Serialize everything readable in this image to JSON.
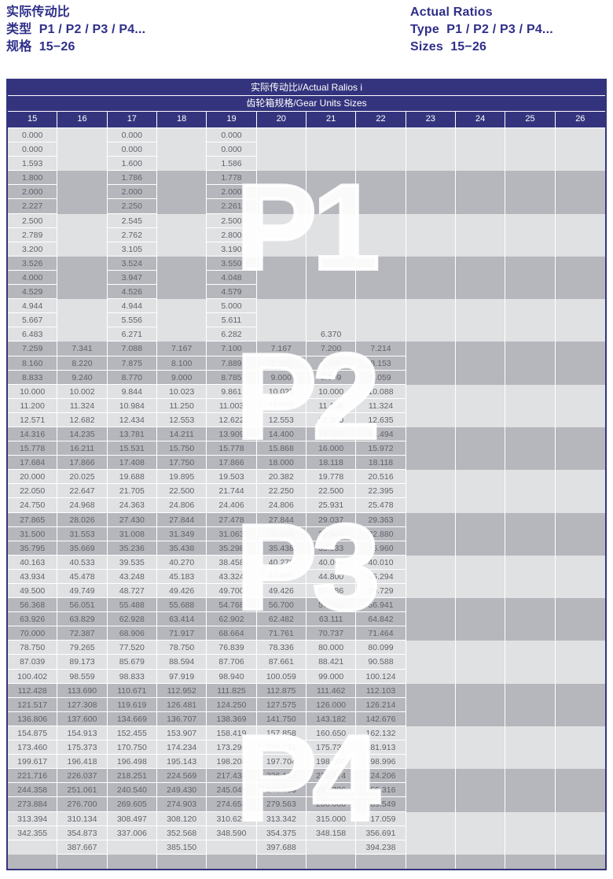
{
  "page_header": {
    "zh": {
      "title": "实际传动比",
      "type_line": "类型  P1 / P2 / P3 / P4...",
      "sizes_line": "规格  15−26"
    },
    "en": {
      "title": "Actual Ratios",
      "type_line": "Type  P1 / P2 / P3 / P4...",
      "sizes_line": "Sizes  15−26"
    }
  },
  "table": {
    "title": "实际传动比i/Actual Ralios i",
    "subtitle": "齿轮箱规格/Gear Units Sizes",
    "columns": [
      "15",
      "16",
      "17",
      "18",
      "19",
      "20",
      "21",
      "22",
      "23",
      "24",
      "25",
      "26"
    ],
    "rows": [
      [
        "0.000",
        "",
        "0.000",
        "",
        "0.000",
        "",
        "",
        "",
        "",
        "",
        "",
        ""
      ],
      [
        "0.000",
        "",
        "0.000",
        "",
        "0.000",
        "",
        "",
        "",
        "",
        "",
        "",
        ""
      ],
      [
        "1.593",
        "",
        "1.600",
        "",
        "1.586",
        "",
        "",
        "",
        "",
        "",
        "",
        ""
      ],
      [
        "1.800",
        "",
        "1.786",
        "",
        "1.778",
        "",
        "",
        "",
        "",
        "",
        "",
        ""
      ],
      [
        "2.000",
        "",
        "2.000",
        "",
        "2.000",
        "",
        "",
        "",
        "",
        "",
        "",
        ""
      ],
      [
        "2.227",
        "",
        "2.250",
        "",
        "2.261",
        "",
        "",
        "",
        "",
        "",
        "",
        ""
      ],
      [
        "2.500",
        "",
        "2.545",
        "",
        "2.500",
        "",
        "",
        "",
        "",
        "",
        "",
        ""
      ],
      [
        "2.789",
        "",
        "2.762",
        "",
        "2.800",
        "",
        "",
        "",
        "",
        "",
        "",
        ""
      ],
      [
        "3.200",
        "",
        "3.105",
        "",
        "3.190",
        "",
        "",
        "",
        "",
        "",
        "",
        ""
      ],
      [
        "3.526",
        "",
        "3.524",
        "",
        "3.550",
        "",
        "",
        "",
        "",
        "",
        "",
        ""
      ],
      [
        "4.000",
        "",
        "3.947",
        "",
        "4.048",
        "",
        "",
        "",
        "",
        "",
        "",
        ""
      ],
      [
        "4.529",
        "",
        "4.526",
        "",
        "4.579",
        "",
        "",
        "",
        "",
        "",
        "",
        ""
      ],
      [
        "4.944",
        "",
        "4.944",
        "",
        "5.000",
        "",
        "",
        "",
        "",
        "",
        "",
        ""
      ],
      [
        "5.667",
        "",
        "5.556",
        "",
        "5.611",
        "",
        "",
        "",
        "",
        "",
        "",
        ""
      ],
      [
        "6.483",
        "",
        "6.271",
        "",
        "6.282",
        "",
        "6.370",
        "",
        "",
        "",
        "",
        ""
      ],
      [
        "7.259",
        "7.341",
        "7.088",
        "7.167",
        "7.100",
        "7.167",
        "7.200",
        "7.214",
        "",
        "",
        "",
        ""
      ],
      [
        "8.160",
        "8.220",
        "7.875",
        "8.100",
        "7.889",
        "8.100",
        "8.000",
        "8.153",
        "",
        "",
        "",
        ""
      ],
      [
        "8.833",
        "9.240",
        "8.770",
        "9.000",
        "8.785",
        "9.000",
        "8.909",
        "9.059",
        "",
        "",
        "",
        ""
      ],
      [
        "10.000",
        "10.002",
        "9.844",
        "10.023",
        "9.861",
        "10.023",
        "10.000",
        "10.088",
        "",
        "",
        "",
        ""
      ],
      [
        "11.200",
        "11.324",
        "10.984",
        "11.250",
        "11.003",
        "11.250",
        "11.158",
        "11.324",
        "",
        "",
        "",
        ""
      ],
      [
        "12.571",
        "12.682",
        "12.434",
        "12.553",
        "12.622",
        "12.553",
        "12.800",
        "12.635",
        "",
        "",
        "",
        ""
      ],
      [
        "14.316",
        "14.235",
        "13.781",
        "14.211",
        "13.909",
        "14.400",
        "14.105",
        "14.494",
        "",
        "",
        "",
        ""
      ],
      [
        "15.778",
        "16.211",
        "15.531",
        "15.750",
        "15.778",
        "15.868",
        "16.000",
        "15.972",
        "",
        "",
        "",
        ""
      ],
      [
        "17.684",
        "17.866",
        "17.408",
        "17.750",
        "17.866",
        "18.000",
        "18.118",
        "18.118",
        "",
        "",
        "",
        ""
      ],
      [
        "20.000",
        "20.025",
        "19.688",
        "19.895",
        "19.503",
        "20.382",
        "19.778",
        "20.516",
        "",
        "",
        "",
        ""
      ],
      [
        "22.050",
        "22.647",
        "21.705",
        "22.500",
        "21.744",
        "22.250",
        "22.500",
        "22.395",
        "",
        "",
        "",
        ""
      ],
      [
        "24.750",
        "24.968",
        "24.363",
        "24.806",
        "24.406",
        "24.806",
        "25.931",
        "25.478",
        "",
        "",
        "",
        ""
      ],
      [
        "27.865",
        "28.026",
        "27.430",
        "27.844",
        "27.478",
        "27.844",
        "29.037",
        "29.363",
        "",
        "",
        "",
        ""
      ],
      [
        "31.500",
        "31.553",
        "31.008",
        "31.349",
        "31.063",
        "31.349",
        "32.640",
        "32.880",
        "",
        "",
        "",
        ""
      ],
      [
        "35.795",
        "35.669",
        "35.236",
        "35.438",
        "35.298",
        "35.438",
        "35.333",
        "36.960",
        "",
        "",
        "",
        ""
      ],
      [
        "40.163",
        "40.533",
        "39.535",
        "40.270",
        "38.458",
        "40.270",
        "40.000",
        "40.010",
        "",
        "",
        "",
        ""
      ],
      [
        "43.934",
        "45.478",
        "43.248",
        "45.183",
        "43.324",
        "43.875",
        "44.800",
        "45.294",
        "",
        "",
        "",
        ""
      ],
      [
        "49.500",
        "49.749",
        "48.727",
        "49.426",
        "49.700",
        "49.426",
        "50.286",
        "50.729",
        "",
        "",
        "",
        ""
      ],
      [
        "56.368",
        "56.051",
        "55.488",
        "55.688",
        "54.768",
        "56.700",
        "57.263",
        "56.941",
        "",
        "",
        "",
        ""
      ],
      [
        "63.926",
        "63.829",
        "62.928",
        "63.414",
        "62.902",
        "62.482",
        "63.111",
        "64.842",
        "",
        "",
        "",
        ""
      ],
      [
        "70.000",
        "72.387",
        "68.906",
        "71.917",
        "68.664",
        "71.761",
        "70.737",
        "71.464",
        "",
        "",
        "",
        ""
      ],
      [
        "78.750",
        "79.265",
        "77.520",
        "78.750",
        "76.839",
        "78.336",
        "80.000",
        "80.099",
        "",
        "",
        "",
        ""
      ],
      [
        "87.039",
        "89.173",
        "85.679",
        "88.594",
        "87.706",
        "87.661",
        "88.421",
        "90.588",
        "",
        "",
        "",
        ""
      ],
      [
        "100.402",
        "98.559",
        "98.833",
        "97.919",
        "98.940",
        "100.059",
        "99.000",
        "100.124",
        "",
        "",
        "",
        ""
      ],
      [
        "112.428",
        "113.690",
        "110.671",
        "112.952",
        "111.825",
        "112.875",
        "111.462",
        "112.103",
        "",
        "",
        "",
        ""
      ],
      [
        "121.517",
        "127.308",
        "119.619",
        "126.481",
        "124.250",
        "127.575",
        "126.000",
        "126.214",
        "",
        "",
        "",
        ""
      ],
      [
        "136.806",
        "137.600",
        "134.669",
        "136.707",
        "138.369",
        "141.750",
        "143.182",
        "142.676",
        "",
        "",
        "",
        ""
      ],
      [
        "154.875",
        "154.913",
        "152.455",
        "153.907",
        "158.419",
        "157.858",
        "160.650",
        "162.132",
        "",
        "",
        "",
        ""
      ],
      [
        "173.460",
        "175.373",
        "170.750",
        "174.234",
        "173.296",
        "180.731",
        "175.737",
        "181.913",
        "",
        "",
        "",
        ""
      ],
      [
        "199.617",
        "196.418",
        "196.498",
        "195.143",
        "198.208",
        "197.704",
        "198.000",
        "198.996",
        "",
        "",
        "",
        ""
      ],
      [
        "221.716",
        "226.037",
        "218.251",
        "224.569",
        "217.438",
        "226.125",
        "225.474",
        "224.206",
        "",
        "",
        "",
        ""
      ],
      [
        "244.358",
        "251.061",
        "240.540",
        "249.430",
        "245.049",
        "248.063",
        "255.706",
        "255.316",
        "",
        "",
        "",
        ""
      ],
      [
        "273.884",
        "276.700",
        "269.605",
        "274.903",
        "274.658",
        "279.563",
        "280.000",
        "289.549",
        "",
        "",
        "",
        ""
      ],
      [
        "313.394",
        "310.134",
        "308.497",
        "308.120",
        "310.625",
        "313.342",
        "315.000",
        "317.059",
        "",
        "",
        "",
        ""
      ],
      [
        "342.355",
        "354.873",
        "337.006",
        "352.568",
        "348.590",
        "354.375",
        "348.158",
        "356.691",
        "",
        "",
        "",
        ""
      ],
      [
        "",
        "387.667",
        "",
        "385.150",
        "",
        "397.688",
        "",
        "394.238",
        "",
        "",
        "",
        ""
      ],
      [
        "",
        "",
        "",
        "",
        "",
        "",
        "",
        "",
        "",
        "",
        "",
        ""
      ]
    ]
  },
  "watermarks": [
    {
      "label": "P1"
    },
    {
      "label": "P2"
    },
    {
      "label": "P3"
    },
    {
      "label": "P4"
    }
  ],
  "colors": {
    "header_navy": "#34347e",
    "title_blue": "#2f2f8a",
    "band_light": "#e0e1e3",
    "band_dark": "#b6b7bc",
    "cell_text": "#616268",
    "gridline": "#ffffff",
    "watermark": "#ffffff"
  }
}
